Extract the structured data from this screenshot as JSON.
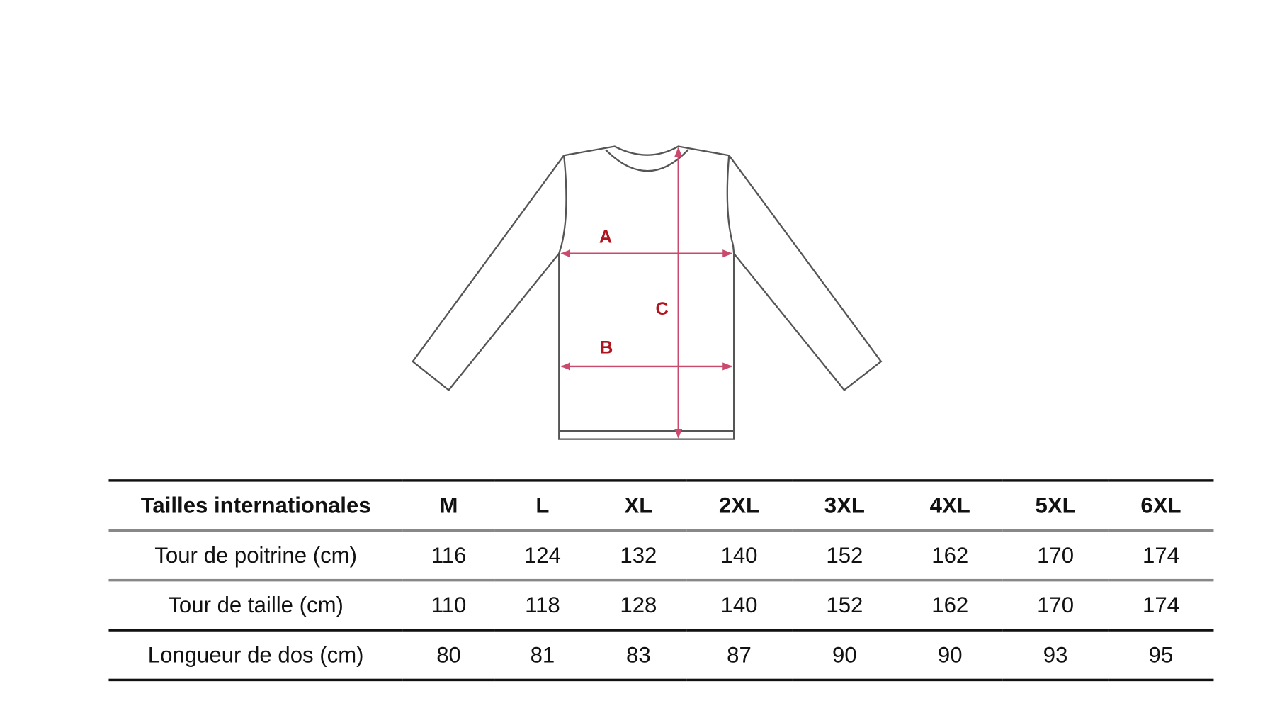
{
  "diagram": {
    "labels": {
      "a": "A",
      "b": "B",
      "c": "C"
    },
    "colors": {
      "label": "#b0141e",
      "arrow": "#c94a6c",
      "outline": "#555555"
    }
  },
  "table": {
    "headers": [
      "Tailles internationales",
      "M",
      "L",
      "XL",
      "2XL",
      "3XL",
      "4XL",
      "5XL",
      "6XL"
    ],
    "rows": [
      [
        "Tour de poitrine (cm)",
        "116",
        "124",
        "132",
        "140",
        "152",
        "162",
        "170",
        "174"
      ],
      [
        "Tour de taille (cm)",
        "110",
        "118",
        "128",
        "140",
        "152",
        "162",
        "170",
        "174"
      ],
      [
        "Longueur de dos (cm)",
        "80",
        "81",
        "83",
        "87",
        "90",
        "90",
        "93",
        "95"
      ]
    ]
  }
}
